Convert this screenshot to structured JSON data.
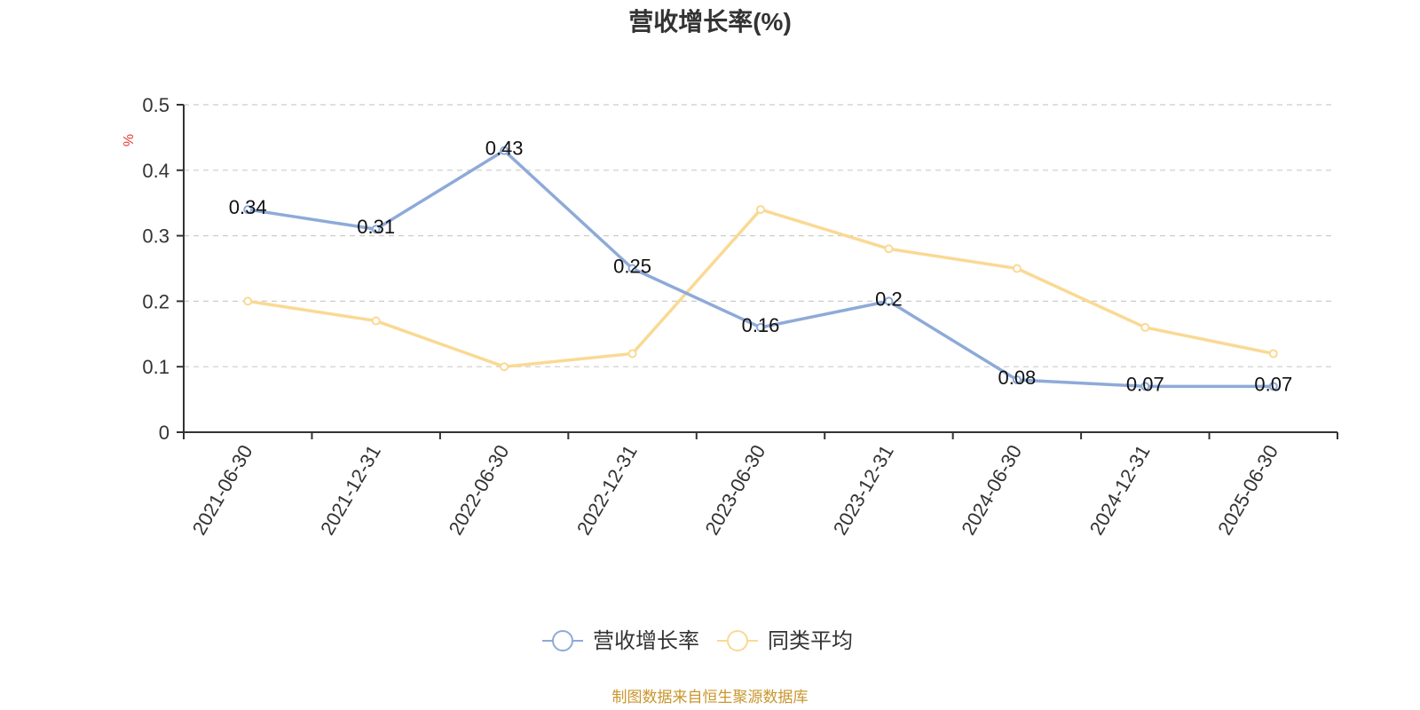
{
  "chart_data": {
    "type": "line",
    "title": "营收增长率(%)",
    "y_unit": "%",
    "categories": [
      "2021-06-30",
      "2021-12-31",
      "2022-06-30",
      "2022-12-31",
      "2023-06-30",
      "2023-12-31",
      "2024-06-30",
      "2024-12-31",
      "2025-06-30"
    ],
    "series": [
      {
        "name": "营收增长率",
        "color": "#8eaad8",
        "values": [
          0.34,
          0.31,
          0.43,
          0.25,
          0.16,
          0.2,
          0.08,
          0.07,
          0.07
        ],
        "data_labels": [
          "0.34",
          "0.31",
          "0.43",
          "0.25",
          "0.16",
          "0.2",
          "0.08",
          "0.07",
          "0.07"
        ]
      },
      {
        "name": "同类平均",
        "color": "#fad994",
        "values": [
          0.2,
          0.17,
          0.1,
          0.12,
          0.34,
          0.28,
          0.25,
          0.16,
          0.12
        ]
      }
    ],
    "ylim": [
      0,
      0.5
    ],
    "yticks": [
      0,
      0.1,
      0.2,
      0.3,
      0.4,
      0.5
    ],
    "ytick_labels": [
      "0",
      "0.1",
      "0.2",
      "0.3",
      "0.4",
      "0.5"
    ],
    "grid": true,
    "legend_position": "bottom-center",
    "unit_color": "#e53935",
    "source": "制图数据来自恒生聚源数据库",
    "source_color": "#c8962c"
  }
}
